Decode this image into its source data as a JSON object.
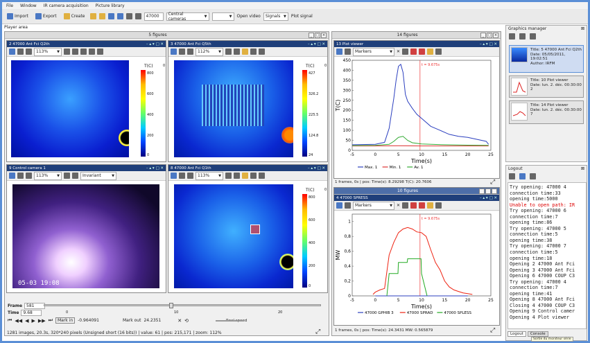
{
  "menu": [
    "File",
    "Window",
    "IR camera acquisition",
    "Picture library"
  ],
  "toolbar": {
    "import": "Import",
    "export": "Export",
    "create": "Create",
    "pulse": "47000",
    "camera_select": "Central cameras",
    "blank_select": "",
    "open_video": "Open video",
    "signals_select": "Signals",
    "plot_signal": "Plot signal"
  },
  "player": {
    "area_label": "Player area",
    "title": "5 figures",
    "sub": [
      {
        "title": "2 47000 Ant Fci Q2th",
        "zoom": "113%",
        "colorbar": {
          "label": "T(C)",
          "ticks": [
            "800",
            "600",
            "400",
            "200",
            "0"
          ],
          "extra": "0"
        }
      },
      {
        "title": "3 47000 Ant Fci Q5th",
        "zoom": "112%",
        "colorbar": {
          "label": "T(C)",
          "ticks": [
            "427",
            "326.2",
            "225.5",
            "124.8",
            "24"
          ],
          "extra": "0"
        }
      },
      {
        "title": "9 Control camera 1",
        "zoom": "113%",
        "mode": "Invariant",
        "overlay": "05-03 19:08"
      },
      {
        "title": "8 47000 Ant Fci Q1th",
        "zoom": "113%",
        "colorbar": {
          "label": "T(C)",
          "ticks": [
            "800",
            "600",
            "400",
            "200",
            "0"
          ],
          "extra": "0"
        }
      }
    ],
    "frame_label": "Frame",
    "frame_value": "581",
    "time_label": "Time",
    "time_value": "9.68",
    "slider_ticks": [
      "0",
      "10",
      "20"
    ],
    "mark_in": "Mark in",
    "mark_in_value": "-0.964091",
    "mark_out": "Mark out",
    "mark_out_value": "24.2351",
    "real_speed": "Real speed",
    "status": "1281 images, 20.3s, 320*240 pixels (Unsigned short (16 bits)) | value: 61 | pos: 215,171 | zoom: 112%"
  },
  "figures": {
    "title": "14 figures",
    "plot1": {
      "title": "13 Plot viewer",
      "selector": "Markers",
      "status": "1 frames, 0s | pos: Time(s): 8.29298  T(C): 20.7606"
    },
    "sub_figures": {
      "title": "10 figures",
      "plot2_title": "4 47000 SPRESS",
      "selector": "Markers",
      "status": "1 frames, 0s | pos: Time(s): 24.3431  MW: 0.565879"
    }
  },
  "graphics_manager": {
    "title": "Graphics manager",
    "cards": [
      {
        "title": "Title: 5 47000 Ant Fci Q2th",
        "date": "Date: 05/05/2011, 19:02:51",
        "author": "Author: IRFM"
      },
      {
        "title": "Title: 10 Plot viewer",
        "date": "Date: lun. 2. déc. 00:30:00 2"
      },
      {
        "title": "Title: 14 Plot viewer",
        "date": "Date: lun. 2. déc. 00:30:00 7"
      }
    ]
  },
  "logout": {
    "title": "Logout",
    "lines": [
      {
        "text": "Try opening: 47000 4",
        "err": false
      },
      {
        "text": "connection time:33",
        "err": false
      },
      {
        "text": "opening time:5000",
        "err": false
      },
      {
        "text": "Unable to open path: IR",
        "err": true
      },
      {
        "text": "Try opening: 47000 6",
        "err": false
      },
      {
        "text": "connection time:7",
        "err": false
      },
      {
        "text": "opening time:86",
        "err": false
      },
      {
        "text": "Try opening: 47000 5",
        "err": false
      },
      {
        "text": "connection time:5",
        "err": false
      },
      {
        "text": "opening time:38",
        "err": false
      },
      {
        "text": "Try opening: 47000 7",
        "err": false
      },
      {
        "text": "connection time:5",
        "err": false
      },
      {
        "text": "opening time:18",
        "err": false
      },
      {
        "text": "Opening 2 47000 Ant Fci",
        "err": false
      },
      {
        "text": "Opening 3 47000 Ant Fci",
        "err": false
      },
      {
        "text": "Opening 6 47000 COUP C3",
        "err": false
      },
      {
        "text": "Try opening: 47000 4",
        "err": false
      },
      {
        "text": "connection time:7",
        "err": false
      },
      {
        "text": "opening time:41",
        "err": false
      },
      {
        "text": "Opening 8 47000 Ant Fci",
        "err": false
      },
      {
        "text": "Closing 4 47000 COUP C3",
        "err": false
      },
      {
        "text": "Opening 9 Control camer",
        "err": false
      },
      {
        "text": "Opening 4 Plot viewer",
        "err": false
      }
    ],
    "tabs": [
      "Logout",
      "Console"
    ],
    "footer": "Sortie du moniteur série"
  },
  "chart_data": [
    {
      "type": "line",
      "title": "",
      "xlabel": "Time(s)",
      "ylabel": "T(C)",
      "xlim": [
        -5,
        25
      ],
      "ylim": [
        0,
        450
      ],
      "x_ticks": [
        "-5",
        "0",
        "5",
        "10",
        "15",
        "20",
        "25"
      ],
      "y_ticks": [
        "450",
        "400",
        "350",
        "300",
        "250",
        "200",
        "150",
        "100",
        "50",
        "0"
      ],
      "marker": {
        "label": "t = 9.675s",
        "x": 9.675
      },
      "series": [
        {
          "name": "Max. 1",
          "color": "#2b3fbf",
          "x": [
            -5,
            0,
            2,
            3,
            4,
            4.5,
            5,
            5.5,
            6,
            6.5,
            7,
            8,
            9,
            10,
            12,
            14,
            16,
            18,
            20,
            22,
            24,
            24.5
          ],
          "y": [
            28,
            30,
            40,
            110,
            260,
            350,
            420,
            430,
            390,
            280,
            245,
            210,
            180,
            160,
            120,
            100,
            80,
            70,
            65,
            55,
            45,
            30
          ]
        },
        {
          "name": "Min. 1",
          "color": "#d33",
          "x": [
            -5,
            0,
            5,
            10,
            15,
            20,
            24.5
          ],
          "y": [
            22,
            22,
            23,
            22,
            22,
            22,
            22
          ]
        },
        {
          "name": "Av. 1",
          "color": "#3a3",
          "x": [
            -5,
            0,
            3,
            4,
            5,
            6,
            7,
            8,
            10,
            15,
            20,
            24.5
          ],
          "y": [
            24,
            25,
            30,
            45,
            65,
            70,
            50,
            38,
            32,
            28,
            26,
            25
          ]
        }
      ]
    },
    {
      "type": "line",
      "title": "",
      "xlabel": "Time(s)",
      "ylabel": "MW",
      "xlim": [
        -5,
        25
      ],
      "ylim": [
        0,
        1.1
      ],
      "x_ticks": [
        "-5",
        "0",
        "5",
        "10",
        "15",
        "20",
        "25"
      ],
      "y_ticks": [
        "1",
        "0,8",
        "0,6",
        "0,4",
        "0,2",
        "0"
      ],
      "marker": {
        "label": "t = 9.675s",
        "x": 9.675
      },
      "series": [
        {
          "name": "47000 GPHIB 3",
          "color": "#2b3fbf",
          "x": [
            0,
            5,
            10,
            15,
            20
          ],
          "y": [
            0,
            0,
            0,
            0,
            0
          ]
        },
        {
          "name": "47000 SPRAD",
          "color": "#e21",
          "x": [
            -0.5,
            0,
            1,
            2,
            3,
            4,
            5,
            6,
            7,
            8,
            9,
            10,
            11,
            12,
            13,
            14,
            15,
            16,
            17,
            18,
            19,
            20,
            21
          ],
          "y": [
            0.02,
            0.05,
            0.08,
            0.1,
            0.55,
            0.72,
            0.85,
            0.9,
            0.92,
            0.9,
            0.86,
            0.85,
            0.8,
            0.62,
            0.45,
            0.35,
            0.2,
            0.12,
            0.08,
            0.06,
            0.04,
            0.03,
            0.02
          ]
        },
        {
          "name": "47000 SPLESS",
          "color": "#2a2",
          "x": [
            2.5,
            3,
            4.9,
            5,
            6.9,
            7,
            9.9,
            10,
            11.2
          ],
          "y": [
            0,
            0.3,
            0.3,
            0.45,
            0.45,
            0.5,
            0.5,
            0.3,
            0
          ]
        }
      ]
    }
  ]
}
